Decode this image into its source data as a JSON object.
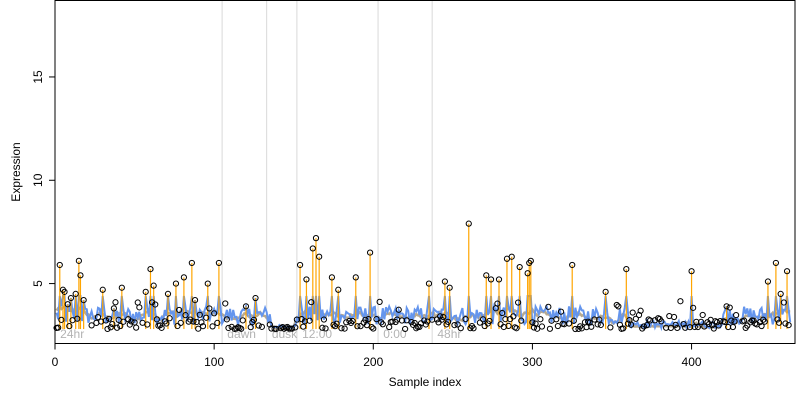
{
  "chart_data": {
    "type": "scatter",
    "title": "",
    "xlabel": "Sample index",
    "ylabel": "Expression",
    "xlim": [
      0,
      465
    ],
    "ylim": [
      2.1,
      18.7
    ],
    "x_ticks": [
      0,
      100,
      200,
      300,
      400
    ],
    "y_ticks": [
      5,
      10,
      15
    ],
    "grid": false,
    "legend": "none",
    "baseline": 2.8,
    "regions": [
      {
        "label": "24hr",
        "x": 2
      },
      {
        "label": "dawn",
        "x": 107
      },
      {
        "label": "dusk",
        "x": 135
      },
      {
        "label": "12:00",
        "x": 154
      },
      {
        "label": "0:00",
        "x": 205
      },
      {
        "label": "48hr",
        "x": 239
      }
    ],
    "region_boundaries": [
      105,
      133,
      152,
      203,
      237
    ],
    "colors": {
      "points": "#000000",
      "stems": "#ffa500",
      "fit_line": "#6495ed",
      "smooth_line": "#b8a98f",
      "boundaries": "#d9d9d9"
    },
    "series": [
      {
        "x": [
          3,
          5,
          6,
          8,
          10,
          13,
          15,
          16,
          18,
          30,
          37,
          42,
          57,
          60,
          62,
          71,
          76,
          81,
          86,
          88,
          96,
          103,
          120,
          126,
          154,
          158,
          162,
          164,
          166,
          174,
          178,
          189,
          198,
          235,
          245,
          248,
          260,
          271,
          274,
          279,
          284,
          287,
          292,
          297,
          298,
          299,
          325,
          346,
          359,
          400,
          422,
          448,
          453,
          456,
          460
        ],
        "y": [
          5.9,
          4.7,
          4.6,
          4.0,
          4.3,
          4.5,
          6.1,
          5.4,
          4.2,
          4.7,
          3.8,
          4.8,
          4.6,
          5.7,
          4.9,
          4.5,
          5.0,
          5.3,
          6.0,
          4.2,
          5.0,
          6.0,
          3.9,
          4.3,
          5.9,
          5.2,
          6.7,
          7.2,
          6.3,
          5.3,
          4.7,
          5.3,
          6.5,
          5.0,
          5.1,
          4.8,
          7.9,
          5.4,
          5.2,
          5.2,
          6.2,
          6.3,
          5.8,
          5.5,
          6.0,
          6.1,
          5.9,
          4.6,
          5.7,
          5.6,
          3.9,
          5.1,
          6.0,
          4.5,
          5.6
        ]
      }
    ]
  }
}
